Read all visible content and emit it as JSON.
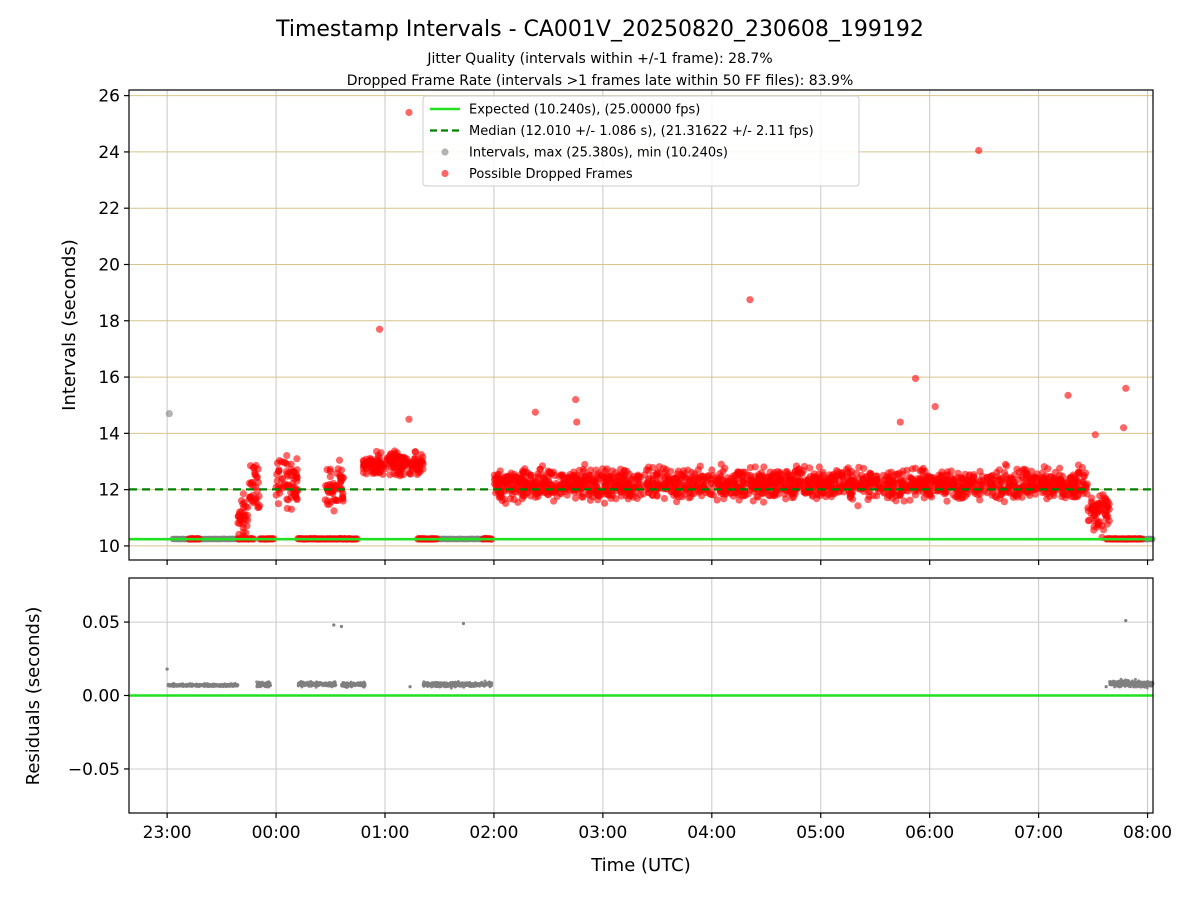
{
  "chart_data": {
    "type": "scatter",
    "title": "Timestamp Intervals - CA001V_20250820_230608_199192",
    "subtitles": [
      "Jitter Quality (intervals within +/-1 frame): 28.7%",
      "Dropped Frame Rate (intervals >1 frames late within 50 FF files): 83.9%"
    ],
    "xlabel": "Time (UTC)",
    "x_ticks": [
      "23:00",
      "00:00",
      "01:00",
      "02:00",
      "03:00",
      "04:00",
      "05:00",
      "06:00",
      "07:00",
      "08:00"
    ],
    "x_tick_values": [
      -1.0,
      0.0,
      1.0,
      2.0,
      3.0,
      4.0,
      5.0,
      6.0,
      7.0,
      8.0
    ],
    "xlim": [
      -1.35,
      8.05
    ],
    "panels": {
      "intervals": {
        "ylabel": "Intervals (seconds)",
        "ylim": [
          9.5,
          26.2
        ],
        "y_ticks": [
          "10",
          "12",
          "14",
          "16",
          "18",
          "20",
          "22",
          "24",
          "26"
        ],
        "y_tick_values": [
          10,
          12,
          14,
          16,
          18,
          20,
          22,
          24,
          26
        ],
        "expected_interval": 10.24,
        "median_interval": 12.01,
        "outliers": [
          [
            -0.98,
            14.7,
            "gray"
          ],
          [
            0.95,
            17.7,
            "red"
          ],
          [
            1.22,
            25.4,
            "red"
          ],
          [
            1.22,
            14.5,
            "red"
          ],
          [
            2.38,
            14.75,
            "red"
          ],
          [
            2.75,
            15.2,
            "red"
          ],
          [
            2.76,
            14.4,
            "red"
          ],
          [
            4.35,
            18.75,
            "red"
          ],
          [
            5.87,
            15.95,
            "red"
          ],
          [
            6.45,
            24.05,
            "red"
          ],
          [
            6.05,
            14.95,
            "red"
          ],
          [
            5.73,
            14.4,
            "red"
          ],
          [
            7.27,
            15.35,
            "red"
          ],
          [
            7.8,
            15.6,
            "red"
          ],
          [
            7.78,
            14.2,
            "red"
          ],
          [
            7.52,
            13.95,
            "red"
          ]
        ]
      },
      "residuals": {
        "ylabel": "Residuals (seconds)",
        "ylim": [
          -0.08,
          0.08
        ],
        "y_ticks": [
          "0.05",
          "0.00",
          "−0.05"
        ],
        "y_tick_values": [
          0.05,
          0.0,
          -0.05
        ],
        "outliers": [
          [
            -1.0,
            0.018
          ],
          [
            0.53,
            0.048
          ],
          [
            0.6,
            0.047
          ],
          [
            1.72,
            0.049
          ],
          [
            7.8,
            0.051
          ],
          [
            1.23,
            0.006
          ],
          [
            7.62,
            0.006
          ]
        ]
      }
    },
    "legend": {
      "placement": "upper-center",
      "entries": [
        {
          "label": "Expected (10.240s), (25.00000 fps)",
          "color": "#22e022",
          "style": "solid"
        },
        {
          "label": "Median (12.010 +/- 1.086 s), (21.31622 +/- 2.11 fps)",
          "color": "#008000",
          "style": "dashed"
        },
        {
          "label": "Intervals, max (25.380s), min (10.240s)",
          "color": "#808080",
          "style": "dot"
        },
        {
          "label": "Possible Dropped Frames",
          "color": "#ff0000",
          "style": "dot"
        }
      ]
    },
    "segments": {
      "gray_baseline": [
        [
          -0.95,
          -0.35
        ],
        [
          1.4,
          1.95
        ],
        [
          7.65,
          8.05
        ]
      ],
      "red_low_baseline": [
        [
          -0.8,
          -0.7
        ],
        [
          -0.35,
          -0.2
        ],
        [
          -0.15,
          -0.02
        ],
        [
          0.2,
          0.75
        ],
        [
          1.3,
          1.48
        ],
        [
          1.9,
          1.98
        ],
        [
          7.62,
          7.95
        ]
      ],
      "red_high_clusters": [
        {
          "range": [
            -0.35,
            -0.25
          ],
          "center": 10.9,
          "spread": 0.9
        },
        {
          "range": [
            -0.25,
            -0.15
          ],
          "center": 12.1,
          "spread": 0.9
        },
        {
          "range": [
            0.0,
            0.2
          ],
          "center": 12.2,
          "spread": 0.9
        },
        {
          "range": [
            0.45,
            0.62
          ],
          "center": 12.0,
          "spread": 1.0
        },
        {
          "range": [
            0.8,
            1.35
          ],
          "center": 12.9,
          "spread": 0.45
        },
        {
          "range": [
            2.0,
            7.45
          ],
          "center": 12.2,
          "spread": 0.55
        },
        {
          "range": [
            7.45,
            7.65
          ],
          "center": 11.2,
          "spread": 0.7
        }
      ],
      "residual_clusters": [
        {
          "range": [
            -1.0,
            -0.35
          ],
          "center": 0.007,
          "spread": 0.001
        },
        {
          "range": [
            -0.18,
            -0.05
          ],
          "center": 0.0075,
          "spread": 0.002
        },
        {
          "range": [
            0.2,
            0.55
          ],
          "center": 0.0078,
          "spread": 0.0018
        },
        {
          "range": [
            0.6,
            0.82
          ],
          "center": 0.0075,
          "spread": 0.0018
        },
        {
          "range": [
            1.35,
            1.98
          ],
          "center": 0.0075,
          "spread": 0.0018
        },
        {
          "range": [
            7.65,
            8.05
          ],
          "center": 0.008,
          "spread": 0.0025
        }
      ]
    },
    "colors": {
      "expected_line": "#22e022",
      "median_line": "#008000",
      "gray_points": "#808080",
      "red_points": "#ff0000",
      "grid_vertical": "#c8c8c8",
      "grid_horizontal": "#d8c48a",
      "residual_grid": "#cccccc"
    },
    "grid": true
  }
}
